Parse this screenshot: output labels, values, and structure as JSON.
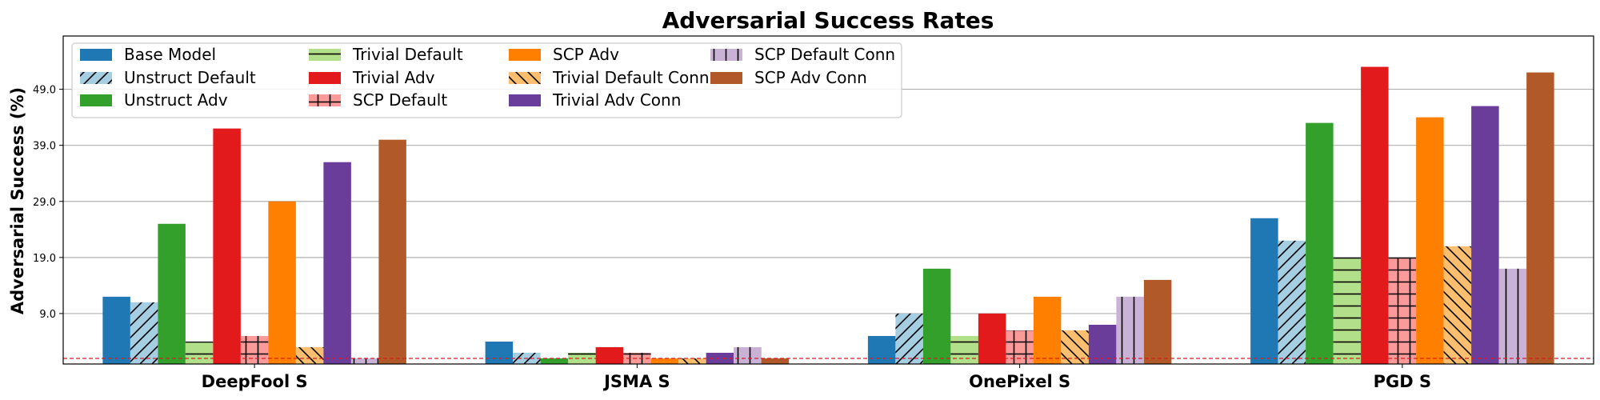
{
  "chart_data": {
    "type": "bar",
    "title": "Adversarial Success Rates",
    "xlabel": "",
    "ylabel": "Adversarial Success (%)",
    "categories": [
      "DeepFool S",
      "JSMA S",
      "OnePixel S",
      "PGD S"
    ],
    "y_ticks": [
      "9.0",
      "19.0",
      "29.0",
      "39.0",
      "49.0"
    ],
    "ylim": [
      0,
      58.5
    ],
    "grid": "horizontal",
    "legend_placement": "top-left",
    "baseline_line": {
      "value": 1.0,
      "color": "#e31a1c",
      "style": "dashed"
    },
    "series": [
      {
        "name": "Base Model",
        "color": "#1f78b4",
        "hatch": "none",
        "values": [
          12.0,
          4.0,
          5.0,
          26.0
        ]
      },
      {
        "name": "Unstruct Default",
        "color": "#a6cee3",
        "hatch": "forward-diagonal",
        "values": [
          11.0,
          2.0,
          9.0,
          22.0
        ]
      },
      {
        "name": "Unstruct Adv",
        "color": "#33a02c",
        "hatch": "none",
        "values": [
          25.0,
          1.0,
          17.0,
          43.0
        ]
      },
      {
        "name": "Trivial Default",
        "color": "#b2df8a",
        "hatch": "horizontal",
        "values": [
          4.0,
          2.0,
          5.0,
          19.0
        ]
      },
      {
        "name": "Trivial Adv",
        "color": "#e31a1c",
        "hatch": "none",
        "values": [
          42.0,
          3.0,
          9.0,
          53.0
        ]
      },
      {
        "name": "SCP Default",
        "color": "#fb9a99",
        "hatch": "grid",
        "values": [
          5.0,
          2.0,
          6.0,
          19.0
        ]
      },
      {
        "name": "SCP Adv",
        "color": "#ff7f00",
        "hatch": "none",
        "values": [
          29.0,
          1.0,
          12.0,
          44.0
        ]
      },
      {
        "name": "Trivial Default Conn",
        "color": "#fdbf6f",
        "hatch": "back-diagonal",
        "values": [
          3.0,
          1.0,
          6.0,
          21.0
        ]
      },
      {
        "name": "Trivial Adv Conn",
        "color": "#6a3d9a",
        "hatch": "none",
        "values": [
          36.0,
          2.0,
          7.0,
          46.0
        ]
      },
      {
        "name": "SCP Default Conn",
        "color": "#cab2d6",
        "hatch": "vertical",
        "values": [
          1.0,
          3.0,
          12.0,
          17.0
        ]
      },
      {
        "name": "SCP Adv Conn",
        "color": "#b15928",
        "hatch": "none",
        "values": [
          40.0,
          1.0,
          15.0,
          52.0
        ]
      }
    ]
  }
}
